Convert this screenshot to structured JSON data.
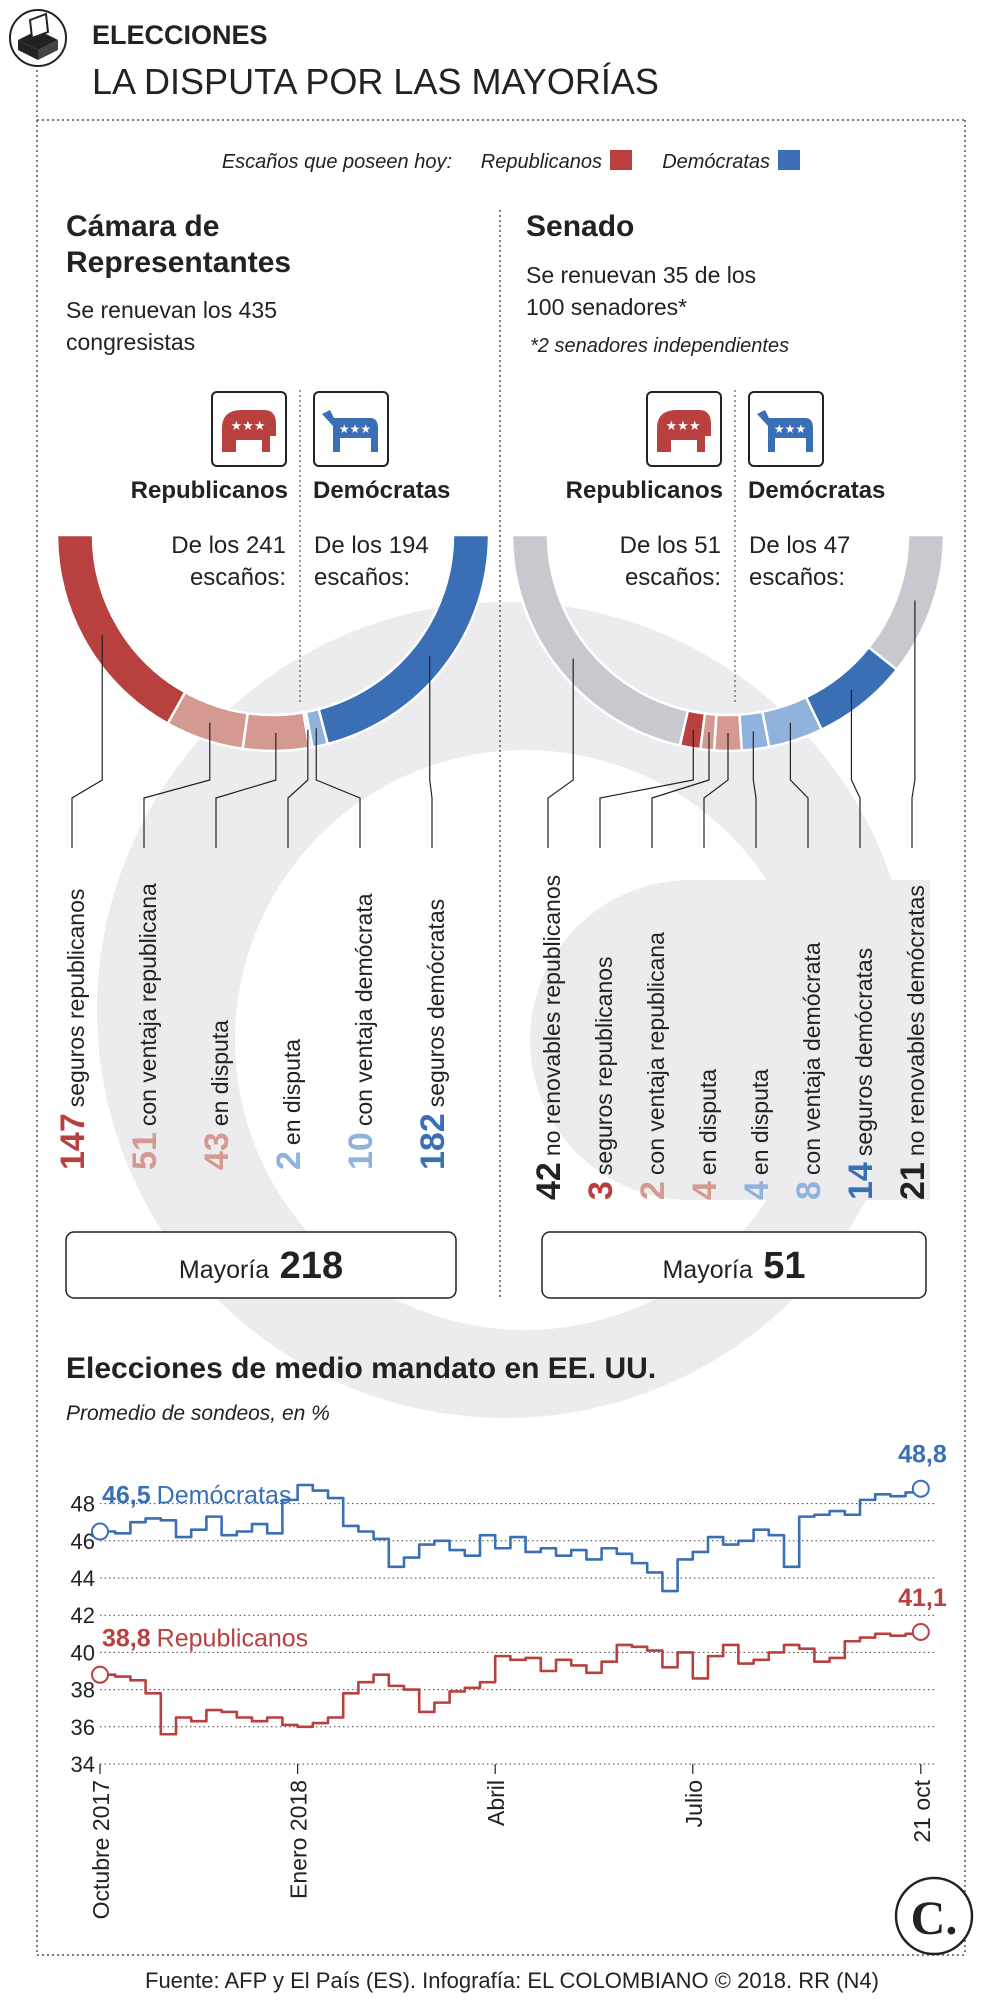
{
  "header": {
    "kicker": "ELECCIONES",
    "title": "LA DISPUTA POR LAS MAYORÍAS"
  },
  "legend": {
    "intro": "Escaños que poseen hoy:",
    "rep": "Republicanos",
    "dem": "Demócratas"
  },
  "colors": {
    "rep_safe": "#b8403e",
    "rep_lean": "#d49a92",
    "dem_lean": "#8fb3dc",
    "dem_safe": "#3a6fb6",
    "non_renew": "#c8c9cf",
    "text": "#222222",
    "watermark": "#ececef"
  },
  "house": {
    "title_line1": "Cámara de",
    "title_line2": "Representantes",
    "sub_line1": "Se renuevan los 435",
    "sub_line2": "congresistas",
    "rep_label": "Republicanos",
    "dem_label": "Demócratas",
    "rep_of_line1": "De los 241",
    "rep_of_line2": "escaños:",
    "dem_of_line1": "De los 194",
    "dem_of_line2": "escaños:",
    "majority_label": "Mayoría",
    "majority_value": "218"
  },
  "senate": {
    "title": "Senado",
    "sub_line1": "Se renuevan 35 de los",
    "sub_line2": "100 senadores*",
    "note": "*2 senadores independientes",
    "rep_label": "Republicanos",
    "dem_label": "Demócratas",
    "rep_of_line1": "De los 51",
    "rep_of_line2": "escaños:",
    "dem_of_line1": "De los 47",
    "dem_of_line2": "escaños:",
    "majority_label": "Mayoría",
    "majority_value": "51"
  },
  "chart_data": [
    {
      "type": "pie",
      "title": "Cámara de Representantes",
      "shape": "semicircle",
      "categories": [
        "seguros republicanos",
        "con ventaja republicana",
        "en disputa",
        "en disputa",
        "con ventaja demócrata",
        "seguros demócratas"
      ],
      "values": [
        147,
        51,
        43,
        2,
        10,
        182
      ],
      "labels": [
        "147",
        "51",
        "43",
        "2",
        "10",
        "182"
      ],
      "party": [
        "rep",
        "rep",
        "rep",
        "dem",
        "dem",
        "dem"
      ],
      "colors": [
        "#b8403e",
        "#d49a92",
        "#d49a92",
        "#8fb3dc",
        "#8fb3dc",
        "#3a6fb6"
      ]
    },
    {
      "type": "pie",
      "title": "Senado",
      "shape": "semicircle",
      "categories": [
        "no renovables republicanos",
        "seguros republicanos",
        "con ventaja republicana",
        "en disputa",
        "en disputa",
        "con ventaja demócrata",
        "seguros demócratas",
        "no renovables demócratas"
      ],
      "values": [
        42,
        3,
        2,
        4,
        4,
        8,
        14,
        21
      ],
      "labels": [
        "42",
        "3",
        "2",
        "4",
        "4",
        "8",
        "14",
        "21"
      ],
      "party": [
        "rep",
        "rep",
        "rep",
        "rep",
        "dem",
        "dem",
        "dem",
        "dem"
      ],
      "colors": [
        "#c8c9cf",
        "#b8403e",
        "#d49a92",
        "#d49a92",
        "#8fb3dc",
        "#8fb3dc",
        "#3a6fb6",
        "#c8c9cf"
      ]
    },
    {
      "type": "line",
      "title": "Elecciones de medio mandato en EE. UU.",
      "subtitle": "Promedio de sondeos, en %",
      "ylim": [
        34,
        49
      ],
      "yticks": [
        34,
        36,
        38,
        40,
        42,
        44,
        46,
        48
      ],
      "xlim": [
        0,
        55
      ],
      "xticks": [
        {
          "x": 0,
          "label": "Octubre 2017"
        },
        {
          "x": 13,
          "label": "Enero 2018"
        },
        {
          "x": 26,
          "label": "Abril"
        },
        {
          "x": 39,
          "label": "Julio"
        },
        {
          "x": 54,
          "label": "21 oct"
        }
      ],
      "series": [
        {
          "name": "Demócratas",
          "color": "#3a6fb6",
          "start_label": "46,5",
          "end_label": "48,8",
          "x": [
            0,
            1,
            2,
            3,
            4,
            5,
            6,
            7,
            8,
            9,
            10,
            11,
            12,
            13,
            14,
            15,
            16,
            17,
            18,
            19,
            20,
            21,
            22,
            23,
            24,
            25,
            26,
            27,
            28,
            29,
            30,
            31,
            32,
            33,
            34,
            35,
            36,
            37,
            38,
            39,
            40,
            41,
            42,
            43,
            44,
            45,
            46,
            47,
            48,
            49,
            50,
            51,
            52,
            53,
            54
          ],
          "values": [
            46.5,
            46.4,
            47.0,
            47.2,
            47.1,
            46.2,
            46.6,
            47.3,
            46.3,
            46.5,
            46.9,
            46.4,
            48.2,
            49.0,
            48.7,
            48.3,
            46.8,
            46.5,
            46.1,
            44.6,
            45.1,
            45.8,
            46.0,
            45.5,
            45.2,
            46.3,
            45.6,
            46.2,
            45.4,
            45.6,
            45.2,
            45.5,
            45.0,
            45.6,
            45.3,
            44.8,
            44.3,
            43.3,
            45.0,
            45.4,
            46.2,
            45.8,
            46.0,
            46.6,
            46.3,
            44.6,
            47.3,
            47.4,
            47.6,
            47.4,
            48.2,
            48.5,
            48.4,
            48.6,
            48.8
          ]
        },
        {
          "name": "Republicanos",
          "color": "#b8403e",
          "start_label": "38,8",
          "end_label": "41,1",
          "x": [
            0,
            1,
            2,
            3,
            4,
            5,
            6,
            7,
            8,
            9,
            10,
            11,
            12,
            13,
            14,
            15,
            16,
            17,
            18,
            19,
            20,
            21,
            22,
            23,
            24,
            25,
            26,
            27,
            28,
            29,
            30,
            31,
            32,
            33,
            34,
            35,
            36,
            37,
            38,
            39,
            40,
            41,
            42,
            43,
            44,
            45,
            46,
            47,
            48,
            49,
            50,
            51,
            52,
            53,
            54
          ],
          "values": [
            38.8,
            38.7,
            38.5,
            37.8,
            35.6,
            36.5,
            36.3,
            36.9,
            36.8,
            36.5,
            36.3,
            36.5,
            36.1,
            36.0,
            36.2,
            36.5,
            37.8,
            38.4,
            38.8,
            38.2,
            38.0,
            36.8,
            37.3,
            37.9,
            38.1,
            38.4,
            39.8,
            39.6,
            39.7,
            39.0,
            39.6,
            39.3,
            38.9,
            39.5,
            40.4,
            40.3,
            40.1,
            39.2,
            40.0,
            38.6,
            39.8,
            40.4,
            39.4,
            39.6,
            40.0,
            40.4,
            40.2,
            39.5,
            39.7,
            40.6,
            40.8,
            41.0,
            40.9,
            41.0,
            41.1
          ]
        }
      ]
    }
  ],
  "footer": {
    "source": "Fuente: AFP y El País (ES). Infografía: EL COLOMBIANO © 2018. RR (N4)",
    "logo": "C."
  }
}
